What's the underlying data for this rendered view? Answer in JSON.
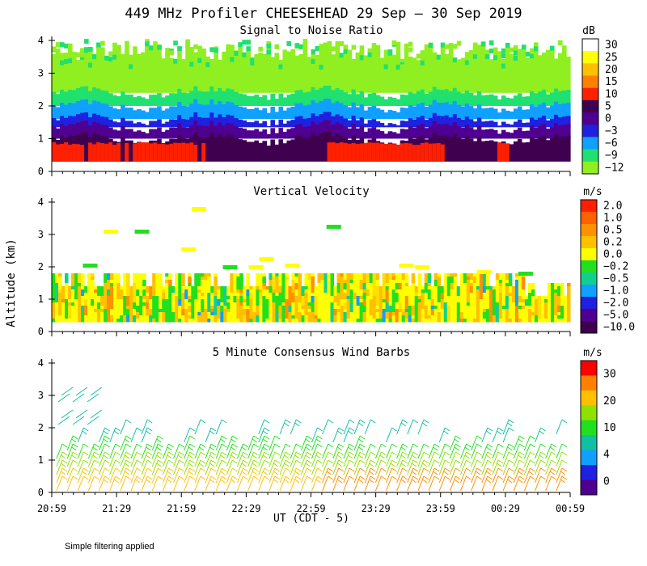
{
  "figure_title": "449 MHz Profiler CHEESEHEAD 29 Sep – 30 Sep 2019",
  "y_axis_label": "Altitude (km)",
  "x_axis_label": "UT  (CDT - 5)",
  "footnote": "Simple filtering applied",
  "chart_data": [
    {
      "type": "heatmap",
      "title": "Signal to Noise Ratio",
      "unit": "dB",
      "x_ticks": [
        "20:59",
        "21:29",
        "21:59",
        "22:29",
        "22:59",
        "23:29",
        "23:59",
        "00:29",
        "00:59"
      ],
      "y_ticks": [
        "0",
        "1",
        "2",
        "3",
        "4"
      ],
      "ylim": [
        0,
        4
      ],
      "colorbar": {
        "labels": [
          "30",
          "25",
          "20",
          "15",
          "10",
          "5",
          "0",
          "−3",
          "−6",
          "−9",
          "−12"
        ],
        "colors": [
          "#ffffff",
          "#ffff00",
          "#ffc000",
          "#ff8000",
          "#ff2000",
          "#400050",
          "#500090",
          "#2020e0",
          "#10a0ff",
          "#20e070",
          "#90ef20"
        ]
      },
      "bands": [
        {
          "label": "10",
          "from_km": 0.3,
          "to_km": 0.9,
          "color": "#ff2000"
        },
        {
          "label": "5",
          "from_km": 0.3,
          "to_km": 1.0,
          "color": "#400050"
        },
        {
          "label": "0",
          "from_km": 1.0,
          "to_km": 1.35,
          "color": "#500090"
        },
        {
          "label": "−3",
          "from_km": 1.35,
          "to_km": 1.6,
          "color": "#2020e0"
        },
        {
          "label": "−6",
          "from_km": 1.6,
          "to_km": 2.0,
          "color": "#10a0ff"
        },
        {
          "label": "−9",
          "from_km": 2.0,
          "to_km": 2.4,
          "color": "#20e070"
        },
        {
          "label": "−12",
          "from_km": 2.4,
          "to_km": 3.7,
          "color": "#90ef20"
        }
      ]
    },
    {
      "type": "heatmap",
      "title": "Vertical Velocity",
      "unit": "m/s",
      "x_ticks": [
        "20:59",
        "21:29",
        "21:59",
        "22:29",
        "22:59",
        "23:29",
        "23:59",
        "00:29",
        "00:59"
      ],
      "y_ticks": [
        "0",
        "1",
        "2",
        "3",
        "4"
      ],
      "ylim": [
        0,
        4
      ],
      "colorbar": {
        "labels": [
          "2.0",
          "1.0",
          "0.5",
          "0.2",
          "0.0",
          "−0.2",
          "−0.5",
          "−1.0",
          "−2.0",
          "−5.0",
          "−10.0"
        ],
        "colors": [
          "#ff2000",
          "#ff6000",
          "#ff9000",
          "#ffc000",
          "#ffff00",
          "#20e020",
          "#10d090",
          "#10a0ff",
          "#2020e0",
          "#500090",
          "#400050"
        ]
      },
      "dominant_range_km": [
        0.3,
        1.8
      ]
    },
    {
      "type": "scatter",
      "title": "5 Minute Consensus Wind Barbs",
      "unit": "m/s",
      "x_ticks": [
        "20:59",
        "21:29",
        "21:59",
        "22:29",
        "22:59",
        "23:29",
        "23:59",
        "00:29",
        "00:59"
      ],
      "y_ticks": [
        "0",
        "1",
        "2",
        "3",
        "4"
      ],
      "ylim": [
        0,
        4
      ],
      "colorbar": {
        "labels": [
          "30",
          "20",
          "10",
          "4",
          "0"
        ],
        "colors": [
          "#ff0000",
          "#ff8000",
          "#ffc000",
          "#90e000",
          "#20e020",
          "#10c0a0",
          "#10a0ff",
          "#2020e0",
          "#500090"
        ]
      },
      "barb_levels_km": [
        0.05,
        0.3,
        0.55,
        0.8,
        1.05,
        1.3,
        1.55,
        1.8
      ],
      "upper_barbs_km": [
        2.1,
        2.3,
        2.8,
        3.0
      ]
    }
  ]
}
